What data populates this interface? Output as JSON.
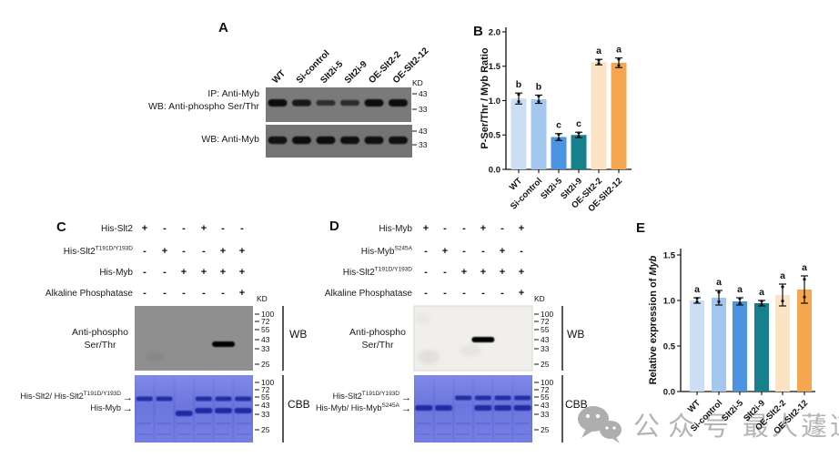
{
  "groups": [
    "WT",
    "Si-control",
    "Slt2i-5",
    "Slt2i-9",
    "OE-Slt2-2",
    "OE-Slt2-12"
  ],
  "palette": {
    "bar_colors": [
      "#cbdef4",
      "#a3c7ee",
      "#4b94e2",
      "#16808c",
      "#fce3c3",
      "#f6a64f"
    ],
    "cbb_gel_blue": "#6b74da",
    "wb_gray": "#8f8f8f"
  },
  "watermark": {
    "icon": "wechat-icon",
    "text": "公众号",
    "text2": "最人蘧道",
    "color": "#b4b4b4"
  },
  "panelA": {
    "label": "A",
    "kd": "KD",
    "lane_labels": [
      "WT",
      "Si-control",
      "Slt2i-5",
      "Slt2i-9",
      "OE-Slt2-2",
      "OE-Slt2-12"
    ],
    "ip_wb_label_line1": "IP: Anti-Myb",
    "ip_wb_label_line2": "WB: Anti-phospho Ser/Thr",
    "wb_myb_label": "WB: Anti-Myb",
    "blot1_markers": [
      "43",
      "33"
    ],
    "blot2_markers": [
      "43",
      "33"
    ],
    "blot1_band_strength": [
      1,
      0.8,
      0.45,
      0.5,
      1,
      1
    ],
    "blot2_band_strength": [
      0.9,
      1,
      1,
      0.95,
      0.95,
      0.95
    ]
  },
  "panelB": {
    "label": "B"
  },
  "panelC": {
    "label": "C",
    "kd": "KD",
    "rows": [
      {
        "text": "His-Slt2",
        "sup": "",
        "values": [
          "+",
          "-",
          "-",
          "+",
          "-",
          "-"
        ]
      },
      {
        "text": "His-Slt2",
        "sup": "T191D/Y193D",
        "values": [
          "-",
          "+",
          "-",
          "-",
          "+",
          "+"
        ]
      },
      {
        "text": "His-Myb",
        "sup": "",
        "values": [
          "-",
          "-",
          "+",
          "+",
          "+",
          "+"
        ]
      },
      {
        "text": "Alkaline Phosphatase",
        "sup": "",
        "values": [
          "-",
          "-",
          "-",
          "-",
          "-",
          "+"
        ]
      }
    ],
    "wb": {
      "left_label_line1": "Anti-phospho",
      "left_label_line2": "Ser/Thr",
      "markers": [
        "100",
        "72",
        "55",
        "43",
        "33",
        "25"
      ],
      "side": "WB",
      "band_lanes": [
        5
      ]
    },
    "cbb": {
      "arrow_labels": [
        {
          "text": "His-Slt2/ His-Slt2",
          "sup": "T191D/Y193D"
        },
        {
          "text": "His-Myb",
          "sup": ""
        }
      ],
      "markers": [
        "100",
        "72",
        "55",
        "43",
        "33",
        "25"
      ],
      "side": "CBB",
      "upper_band_lanes": [
        1,
        2,
        4,
        5,
        6
      ],
      "lower_band_lanes": [
        3,
        4,
        5,
        6
      ]
    }
  },
  "panelD": {
    "label": "D",
    "kd": "KD",
    "rows": [
      {
        "text": "His-Myb",
        "sup": "",
        "values": [
          "+",
          "-",
          "-",
          "+",
          "-",
          "+"
        ]
      },
      {
        "text": "His-Myb",
        "sup": "S245A",
        "values": [
          "-",
          "+",
          "-",
          "-",
          "+",
          "-"
        ]
      },
      {
        "text": "His-Slt2",
        "sup": "T191D/Y193D",
        "values": [
          "-",
          "-",
          "+",
          "+",
          "+",
          "+"
        ]
      },
      {
        "text": "Alkaline Phosphatase",
        "sup": "",
        "values": [
          "-",
          "-",
          "-",
          "-",
          "-",
          "+"
        ]
      }
    ],
    "wb": {
      "left_label_line1": "Anti-phospho",
      "left_label_line2": "Ser/Thr",
      "markers": [
        "100",
        "72",
        "55",
        "43",
        "33",
        "25"
      ],
      "side": "WB",
      "band_lanes": [
        4
      ]
    },
    "cbb": {
      "arrow_labels": [
        {
          "text": "His-Slt2",
          "sup": "T191D/Y193D"
        },
        {
          "text": "His-Myb/ His-Myb",
          "sup": "S245A"
        }
      ],
      "markers": [
        "100",
        "72",
        "55",
        "43",
        "33",
        "25"
      ],
      "side": "CBB",
      "upper_band_lanes": [
        3,
        4,
        5,
        6
      ],
      "lower_band_lanes": [
        1,
        2,
        4,
        5,
        6
      ]
    }
  },
  "panelE": {
    "label": "E"
  },
  "chart_data": [
    {
      "panel": "B",
      "type": "bar",
      "categories": [
        "WT",
        "Si-control",
        "Slt2i-5",
        "Slt2i-9",
        "OE-Slt2-2",
        "OE-Slt2-12"
      ],
      "values": [
        1.03,
        1.02,
        0.47,
        0.5,
        1.56,
        1.55
      ],
      "errors": [
        0.08,
        0.06,
        0.05,
        0.04,
        0.04,
        0.07
      ],
      "sig_letters": [
        "b",
        "b",
        "c",
        "c",
        "a",
        "a"
      ],
      "ylabel": "P-Ser/Thr / Myb Ratio",
      "xlabel": "",
      "ylim": [
        0,
        2.0
      ],
      "yticks": [
        0.0,
        0.5,
        1.0,
        1.5,
        2.0
      ],
      "grid": false,
      "legend": "none",
      "bar_colors": [
        "#cbdef4",
        "#a3c7ee",
        "#4b94e2",
        "#16808c",
        "#fce3c3",
        "#f6a64f"
      ]
    },
    {
      "panel": "E",
      "type": "bar",
      "categories": [
        "WT",
        "Si-control",
        "Slt2i-5",
        "Slt2i-9",
        "OE-Slt2-2",
        "OE-Slt2-12"
      ],
      "values": [
        1.0,
        1.03,
        0.99,
        0.97,
        1.06,
        1.12
      ],
      "errors": [
        0.03,
        0.08,
        0.04,
        0.03,
        0.12,
        0.15
      ],
      "sig_letters": [
        "a",
        "a",
        "a",
        "a",
        "a",
        "a"
      ],
      "ylabel_prefix": "Relative expression of ",
      "ylabel_italic": "Myb",
      "xlabel": "",
      "ylim": [
        0,
        1.5
      ],
      "yticks": [
        0.0,
        0.5,
        1.0,
        1.5
      ],
      "grid": false,
      "legend": "none",
      "bar_colors": [
        "#cbdef4",
        "#a3c7ee",
        "#4b94e2",
        "#16808c",
        "#fce3c3",
        "#f6a64f"
      ]
    }
  ]
}
